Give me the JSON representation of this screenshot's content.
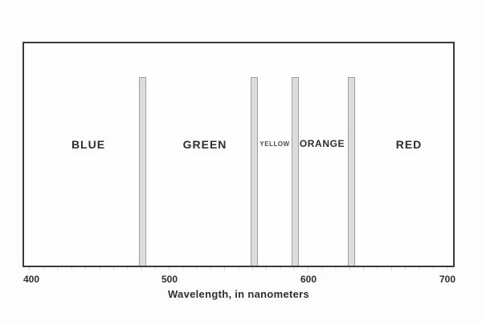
{
  "chart_data": {
    "type": "bar",
    "title": "",
    "xlabel": "Wavelength, in nanometers",
    "ylabel": "",
    "xlim": [
      395,
      705
    ],
    "x_ticks": [
      "400",
      "500",
      "600",
      "700"
    ],
    "grid": false,
    "legend": false,
    "regions": [
      {
        "label": "BLUE",
        "range_nm": [
          400,
          480
        ]
      },
      {
        "label": "GREEN",
        "range_nm": [
          480,
          560
        ]
      },
      {
        "label": "YELLOW",
        "range_nm": [
          560,
          590
        ]
      },
      {
        "label": "ORANGE",
        "range_nm": [
          590,
          630
        ]
      },
      {
        "label": "RED",
        "range_nm": [
          630,
          700
        ]
      }
    ],
    "dividers_nm": [
      480,
      560,
      590,
      630
    ]
  },
  "colors": {
    "frame": "#3b3b3b",
    "divider_fill": "#dcdcdc",
    "divider_border": "#9f9f9f",
    "text": "#2e2e2e",
    "background": "#fdfdfd"
  }
}
